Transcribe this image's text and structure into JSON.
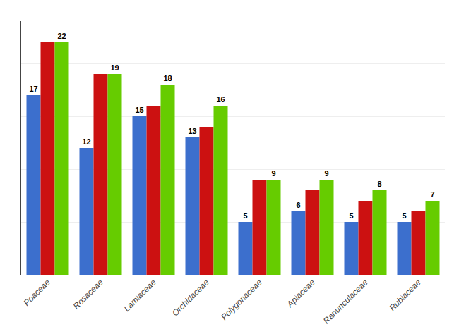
{
  "chart_data": {
    "type": "bar",
    "categories": [
      "Poaceae",
      "Rosaceae",
      "Lamiaceae",
      "Orchidaceae",
      "Polygonaceae",
      "Apiaceae",
      "Ranunculaceae",
      "Rubiaceae"
    ],
    "series": [
      {
        "color": "#3c6fcd",
        "values": [
          17,
          12,
          15,
          13,
          5,
          6,
          5,
          5
        ],
        "data_labels": true
      },
      {
        "color": "#cc1111",
        "values": [
          22,
          19,
          16,
          14,
          9,
          8,
          7,
          6
        ],
        "data_labels": false
      },
      {
        "color": "#66cc00",
        "values": [
          22,
          19,
          18,
          16,
          9,
          9,
          8,
          7
        ],
        "data_labels": true
      }
    ],
    "ylim": [
      0,
      24
    ],
    "yticks": [
      0,
      5,
      10,
      15,
      20
    ],
    "grid": true,
    "tick_labels": "x"
  }
}
